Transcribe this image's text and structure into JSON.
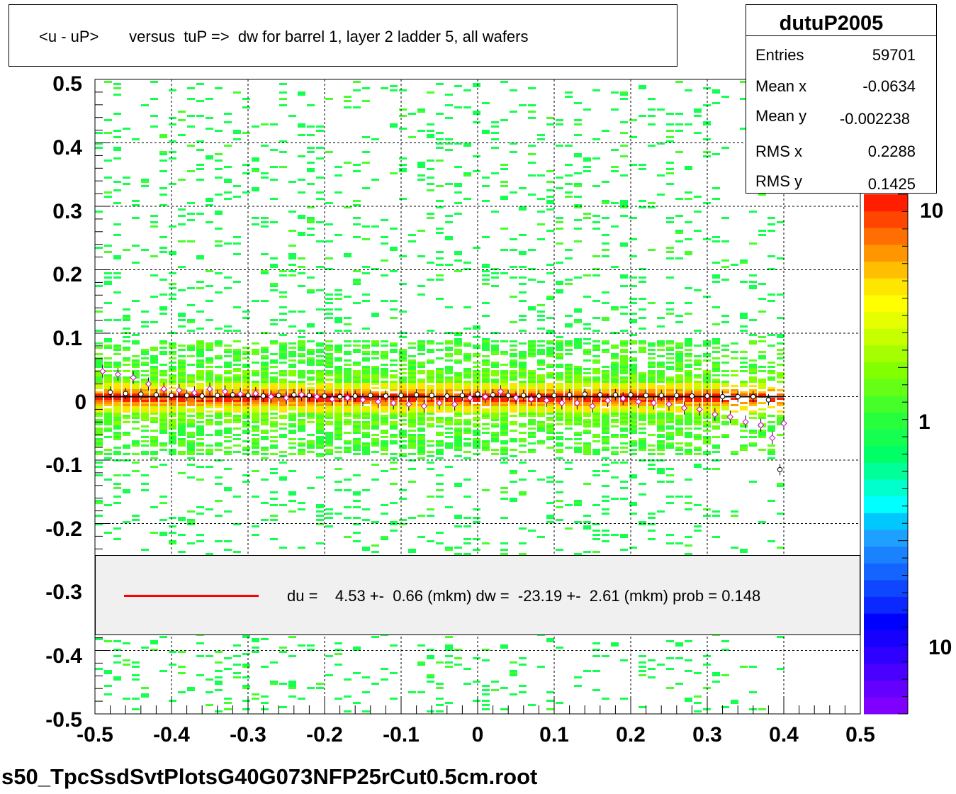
{
  "title": "<u - uP>       versus  tuP =>  dw for barrel 1, layer 2 ladder 5, all wafers",
  "stats": {
    "name": "dutuP2005",
    "rows": [
      {
        "label": "Entries",
        "value": "59701"
      },
      {
        "label": "Mean x",
        "value": "-0.0634"
      },
      {
        "label": "Mean y",
        "value": "-0.002238"
      },
      {
        "label": "RMS x",
        "value": "0.2288"
      },
      {
        "label": "RMS y",
        "value": "0.1425"
      }
    ]
  },
  "legend": {
    "text": "du =    4.53 +-  0.66 (mkm) dw =  -23.19 +-  2.61 (mkm) prob = 0.148",
    "line_color": "#ff0000"
  },
  "footer": "s50_TpcSsdSvtPlotsG40G073NFP25rCut0.5cm.root",
  "chart_data": {
    "type": "heatmap",
    "title": "<u - uP>       versus  tuP =>  dw for barrel 1, layer 2 ladder 5, all wafers",
    "xlim": [
      -0.5,
      0.5
    ],
    "ylim": [
      -0.5,
      0.5
    ],
    "x_ticks": [
      "-0.5",
      "-0.4",
      "-0.3",
      "-0.2",
      "-0.1",
      "0",
      "0.1",
      "0.2",
      "0.3",
      "0.4",
      "0.5"
    ],
    "y_ticks": [
      "0.5",
      "0.4",
      "0.3",
      "0.2",
      "0.1",
      "0",
      "-0.1",
      "-0.2",
      "-0.3",
      "-0.4",
      "-0.5"
    ],
    "z_ticks": [
      "10",
      "1",
      "10"
    ],
    "grid": true,
    "x_data_range": [
      -0.5,
      0.4
    ],
    "band_center_y": 0.0,
    "fit_line": {
      "x": [
        -0.5,
        0.4
      ],
      "y": [
        0.0,
        0.0
      ],
      "color": "#000000"
    },
    "profile_black": {
      "x": [
        -0.48,
        -0.46,
        -0.44,
        -0.42,
        -0.4,
        -0.38,
        -0.36,
        -0.34,
        -0.32,
        -0.3,
        -0.28,
        -0.26,
        -0.24,
        -0.22,
        -0.2,
        -0.18,
        -0.16,
        -0.14,
        -0.12,
        -0.1,
        -0.08,
        -0.06,
        -0.04,
        -0.02,
        0.0,
        0.02,
        0.04,
        0.06,
        0.08,
        0.1,
        0.12,
        0.14,
        0.16,
        0.18,
        0.2,
        0.22,
        0.24,
        0.26,
        0.28,
        0.3,
        0.32,
        0.34,
        0.36,
        0.38,
        0.395
      ],
      "y": [
        0.007,
        0.005,
        0.004,
        0.003,
        0.002,
        0.002,
        0.001,
        0.002,
        0.003,
        0.002,
        0.001,
        0.002,
        0.003,
        0.002,
        0.001,
        0.0,
        0.001,
        0.002,
        0.001,
        0.002,
        0.003,
        0.002,
        0.001,
        0.002,
        0.004,
        0.003,
        0.002,
        0.002,
        0.001,
        0.002,
        0.003,
        0.004,
        0.003,
        0.003,
        0.003,
        0.002,
        0.002,
        0.002,
        0.001,
        0.001,
        0.0,
        0.0,
        0.0,
        -0.005,
        -0.115
      ]
    },
    "profile_magenta": {
      "x": [
        -0.49,
        -0.47,
        -0.45,
        -0.43,
        -0.41,
        -0.39,
        -0.37,
        -0.35,
        -0.33,
        -0.31,
        -0.29,
        -0.27,
        -0.25,
        -0.23,
        -0.21,
        -0.19,
        -0.17,
        -0.15,
        -0.13,
        -0.11,
        -0.09,
        -0.07,
        -0.05,
        -0.03,
        -0.01,
        0.01,
        0.03,
        0.05,
        0.07,
        0.09,
        0.11,
        0.13,
        0.15,
        0.17,
        0.19,
        0.21,
        0.23,
        0.25,
        0.27,
        0.29,
        0.31,
        0.33,
        0.35,
        0.37,
        0.385,
        0.4
      ],
      "y": [
        0.04,
        0.035,
        0.03,
        0.02,
        0.012,
        0.01,
        0.006,
        0.012,
        0.008,
        0.004,
        0.005,
        0.0,
        -0.002,
        0.003,
        0.0,
        -0.004,
        -0.002,
        -0.005,
        -0.008,
        -0.01,
        -0.012,
        -0.015,
        -0.01,
        -0.012,
        -0.002,
        0.0,
        0.008,
        -0.002,
        -0.004,
        -0.006,
        -0.01,
        -0.01,
        -0.015,
        -0.006,
        -0.003,
        -0.008,
        -0.01,
        -0.012,
        -0.018,
        -0.02,
        -0.028,
        -0.032,
        -0.04,
        -0.045,
        -0.065,
        -0.042
      ]
    },
    "colorbar": [
      "#7f00ff",
      "#6400ff",
      "#4a00ff",
      "#2f00ff",
      "#1800ff",
      "#0000ff",
      "#0a28ff",
      "#0f46ff",
      "#1464ff",
      "#1a82ff",
      "#1ea0ff",
      "#00c8ff",
      "#00ffff",
      "#00ffcc",
      "#00ff99",
      "#00ff66",
      "#14ff50",
      "#28ff3c",
      "#46ff28",
      "#64ff14",
      "#82ff00",
      "#a5ff00",
      "#c8ff00",
      "#e6ff00",
      "#ffff00",
      "#ffe600",
      "#ffbe00",
      "#ff9600",
      "#ff6e00",
      "#ff4600",
      "#ff1e00"
    ]
  }
}
